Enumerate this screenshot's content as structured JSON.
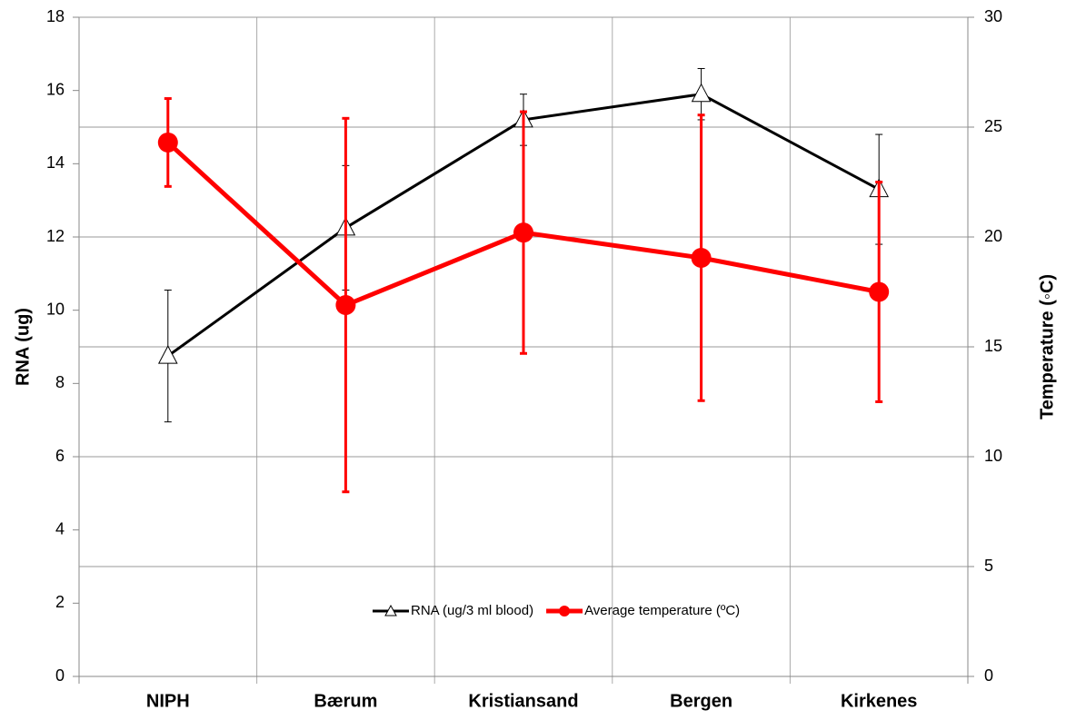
{
  "chart_data": {
    "type": "line",
    "categories": [
      "NIPH",
      "Bærum",
      "Kristiansand",
      "Bergen",
      "Kirkenes"
    ],
    "ylabel": "RNA (ug)",
    "y2label": "Temperature (◦C)",
    "ylim": [
      0,
      18
    ],
    "yticks": [
      0,
      2,
      4,
      6,
      8,
      10,
      12,
      14,
      16,
      18
    ],
    "y2lim": [
      0,
      30
    ],
    "y2ticks": [
      0,
      5,
      10,
      15,
      20,
      25,
      30
    ],
    "grid": true,
    "legend": "bottom",
    "series": [
      {
        "name": "RNA (ug/3 ml blood)",
        "color": "#000000",
        "marker": "triangle",
        "values": [
          8.75,
          12.25,
          15.2,
          15.9,
          13.3
        ],
        "errors": [
          1.8,
          1.7,
          0.7,
          0.7,
          1.5
        ]
      },
      {
        "name": "Average temperature (ºC)",
        "color": "#ff0000",
        "marker": "circle",
        "axis": "y2",
        "values": [
          24.3,
          16.9,
          20.2,
          19.05,
          17.5
        ],
        "errors": [
          2.0,
          8.5,
          5.5,
          6.5,
          5.0
        ]
      }
    ]
  }
}
